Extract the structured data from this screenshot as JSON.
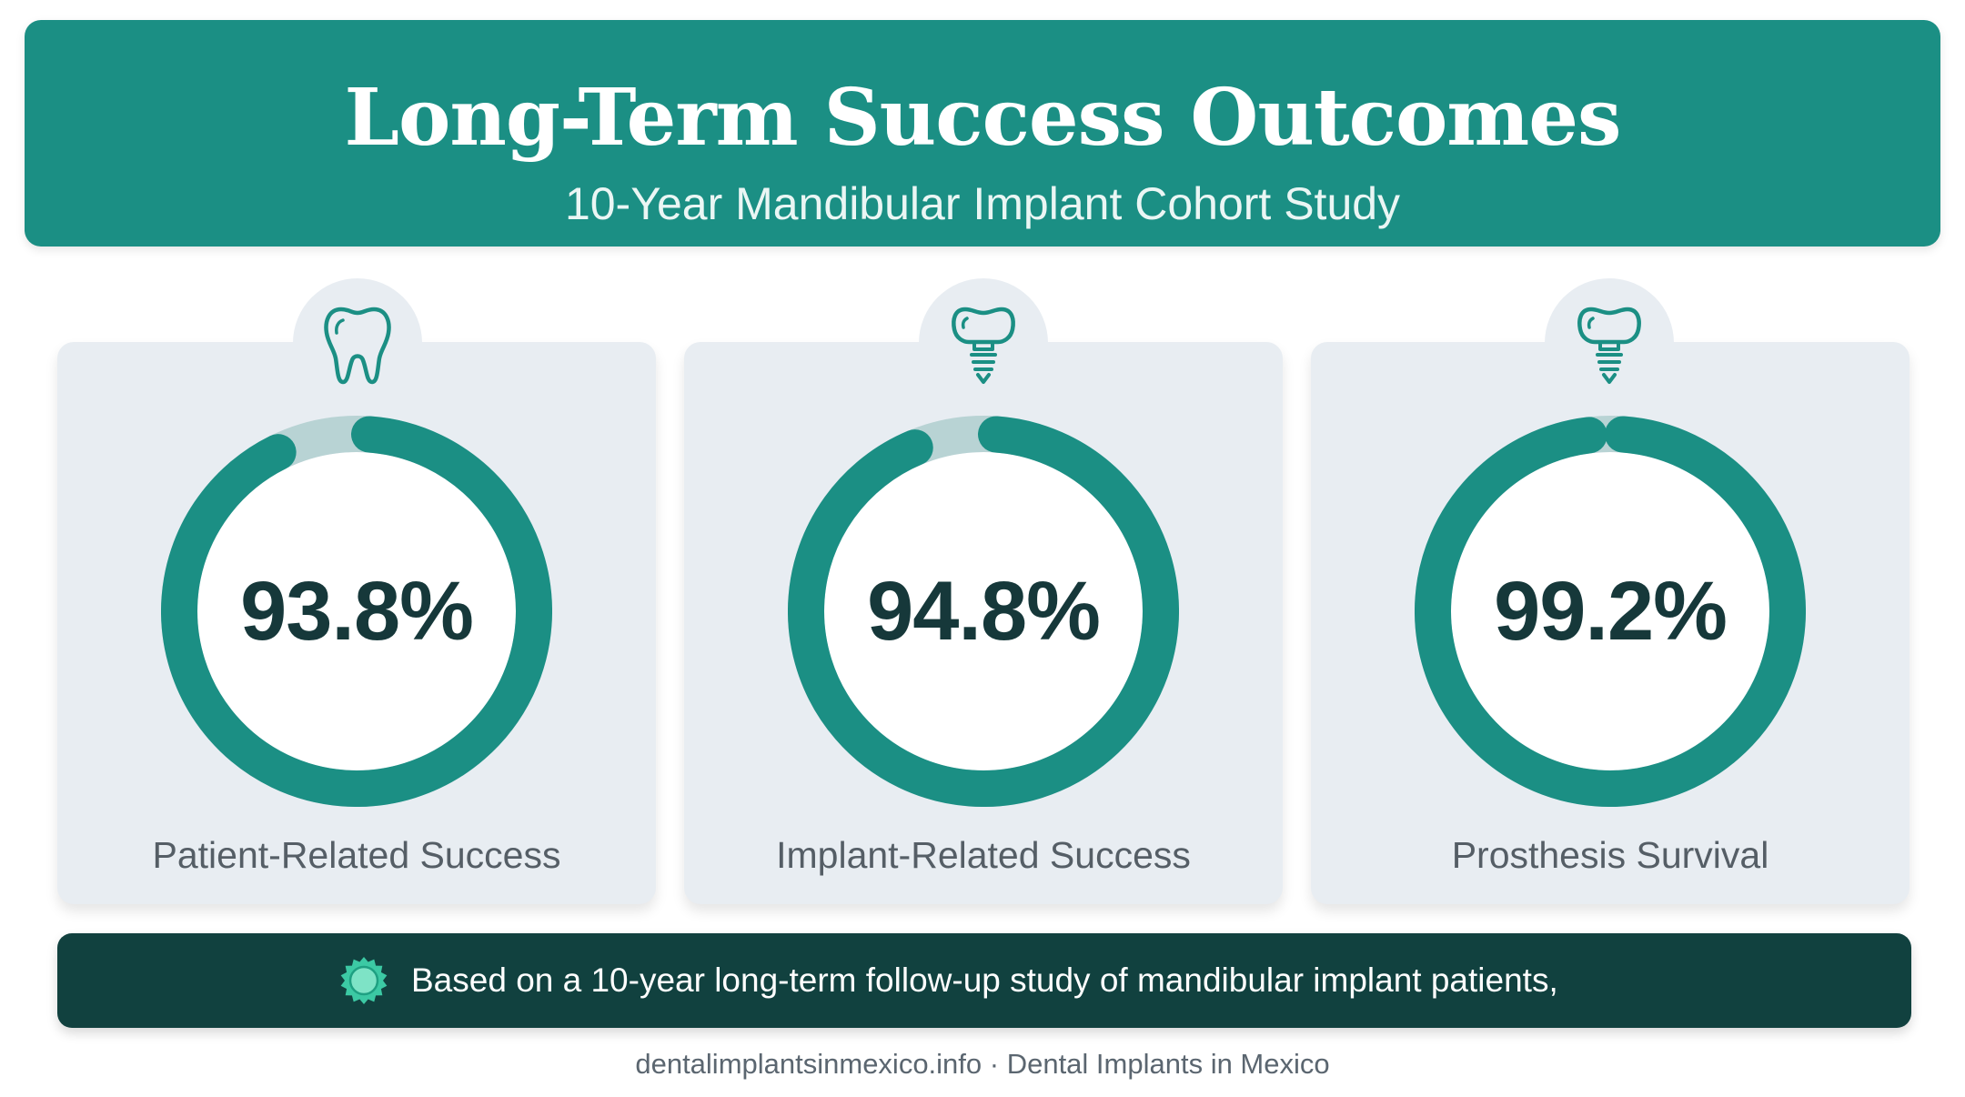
{
  "header": {
    "title": "Long-Term Success Outcomes",
    "subtitle": "10-Year Mandibular Implant Cohort Study"
  },
  "chart_data": {
    "type": "donut",
    "title": "Long-Term Success Outcomes",
    "subtitle": "10-Year Mandibular Implant Cohort Study",
    "unit": "%",
    "max": 100,
    "items": [
      {
        "label": "Patient-Related Success",
        "value": 93.8,
        "display": "93.8%",
        "icon": "tooth-icon"
      },
      {
        "label": "Implant-Related Success",
        "value": 94.8,
        "display": "94.8%",
        "icon": "dental-implant-icon"
      },
      {
        "label": "Prosthesis Survival",
        "value": 99.2,
        "display": "99.2%",
        "icon": "dental-implant-icon"
      }
    ]
  },
  "banner": {
    "text": "Based on a 10-year long-term follow-up study of mandibular implant patients,",
    "icon": "seal-icon"
  },
  "footer": {
    "text": "dentalimplantsinmexico.info · Dental Implants in Mexico"
  },
  "colors": {
    "primary": "#1b8f84",
    "track": "#b8d3d4",
    "dark": "#11413f",
    "card": "#e8edf2",
    "value_text": "#16383a",
    "seal": "#3cc9a4"
  }
}
